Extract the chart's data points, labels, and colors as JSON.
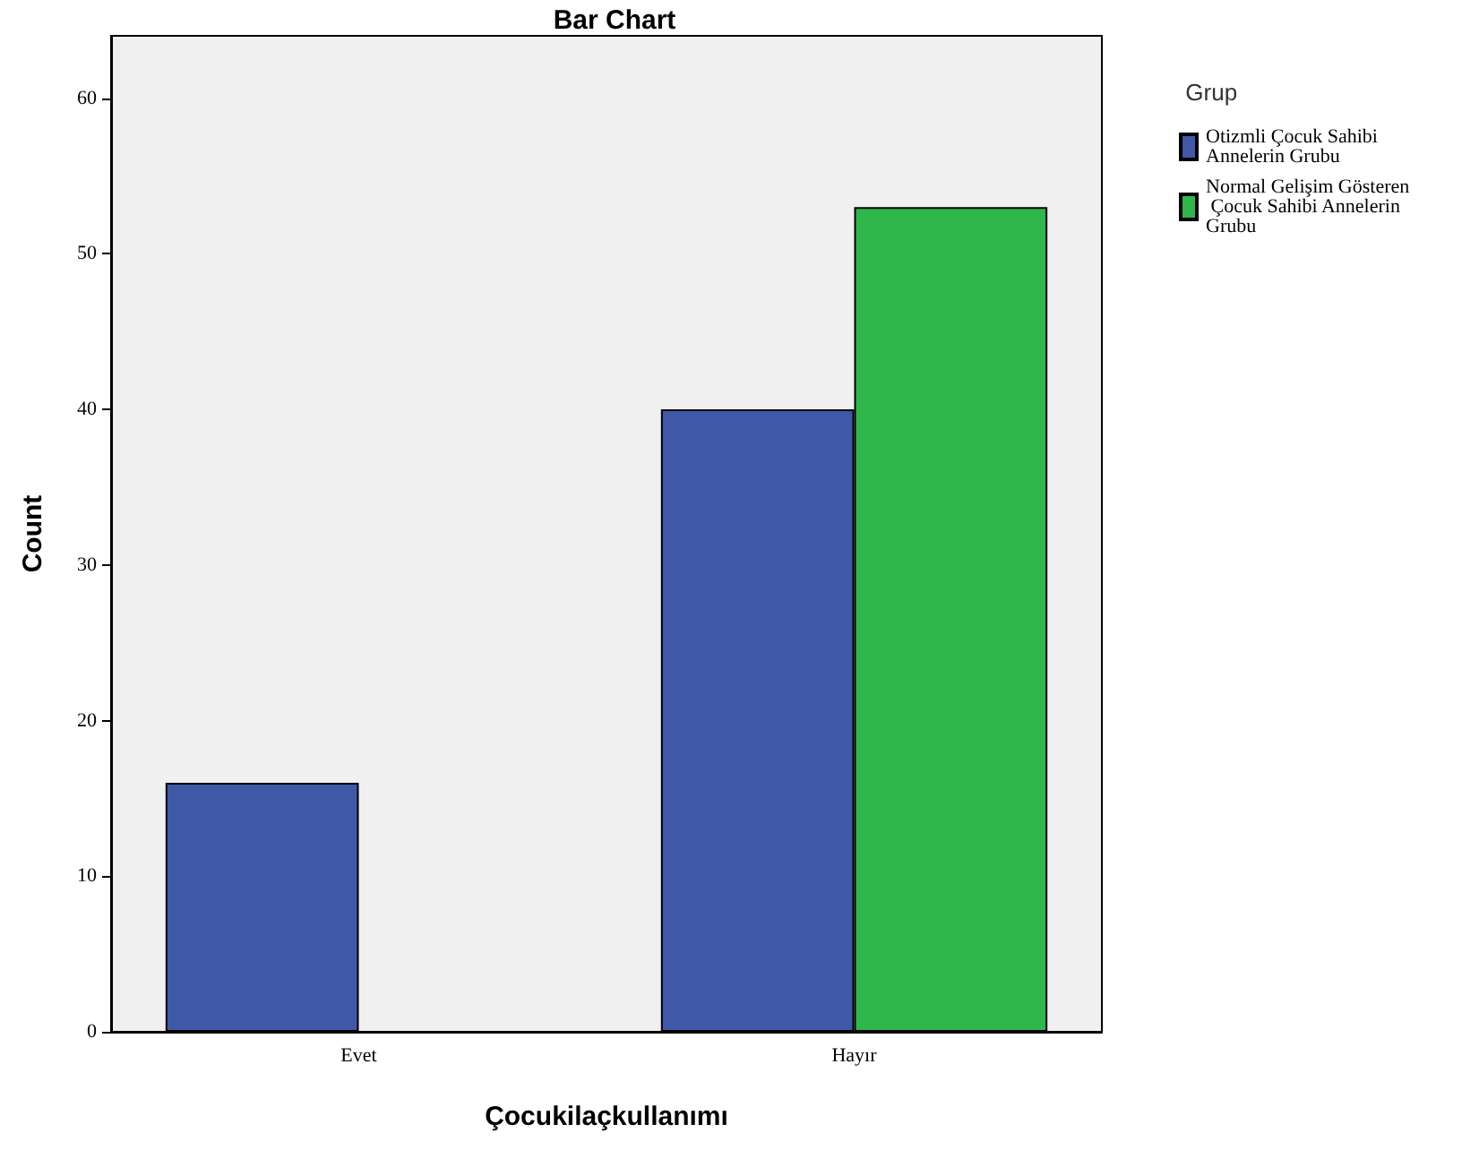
{
  "chart_data": {
    "type": "bar",
    "title": "Bar Chart",
    "xlabel": "Çocukilaçkullanımı",
    "ylabel": "Count",
    "legend_title": "Grup",
    "categories": [
      "Evet",
      "Hayır"
    ],
    "series": [
      {
        "name": "Otizmli Çocuk Sahibi Annelerin Grubu",
        "color": "#3f58a8",
        "values": [
          16,
          40
        ]
      },
      {
        "name": "Normal Gelişim Gösteren Çocuk Sahibi Annelerin Grubu",
        "color": "#2eb84c",
        "values": [
          null,
          53
        ]
      }
    ],
    "ylim": [
      0,
      64
    ],
    "yticks": [
      0,
      10,
      20,
      30,
      40,
      50,
      60
    ],
    "grid": false,
    "legend": "right"
  }
}
